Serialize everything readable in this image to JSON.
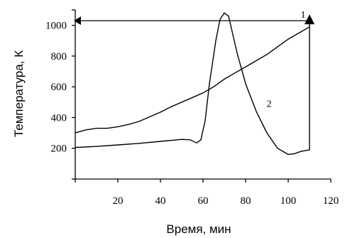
{
  "chart_data": {
    "type": "line",
    "xlabel": "Время, мин",
    "ylabel": "Температура, К",
    "xlim": [
      0,
      120
    ],
    "ylim": [
      0,
      1100
    ],
    "x_ticks": [
      20,
      40,
      60,
      80,
      100,
      120
    ],
    "y_ticks": [
      200,
      400,
      600,
      800,
      1000
    ],
    "grid": false,
    "series": [
      {
        "name": "1",
        "x": [
          0,
          5,
          10,
          15,
          20,
          25,
          30,
          35,
          40,
          45,
          50,
          55,
          60,
          65,
          70,
          75,
          80,
          85,
          90,
          95,
          100,
          105,
          110
        ],
        "y": [
          300,
          320,
          330,
          330,
          340,
          355,
          375,
          405,
          435,
          470,
          500,
          530,
          560,
          600,
          650,
          690,
          730,
          770,
          810,
          860,
          910,
          950,
          990
        ]
      },
      {
        "name": "2",
        "x": [
          0,
          10,
          20,
          30,
          40,
          50,
          54,
          57,
          59,
          61,
          63,
          66,
          68,
          70,
          72,
          74,
          76,
          80,
          85,
          90,
          95,
          100,
          103,
          106,
          110,
          110
        ],
        "y": [
          205,
          212,
          222,
          232,
          245,
          258,
          255,
          235,
          255,
          380,
          620,
          900,
          1040,
          1080,
          1060,
          940,
          820,
          620,
          440,
          300,
          200,
          160,
          165,
          180,
          190,
          1030
        ]
      }
    ],
    "curve_labels": [
      {
        "text": "1",
        "x": 107,
        "y": 1050
      },
      {
        "text": "2",
        "x": 91,
        "y": 470
      }
    ],
    "reference_line": {
      "y": 1030,
      "x_start": 0,
      "x_end": 110
    }
  }
}
